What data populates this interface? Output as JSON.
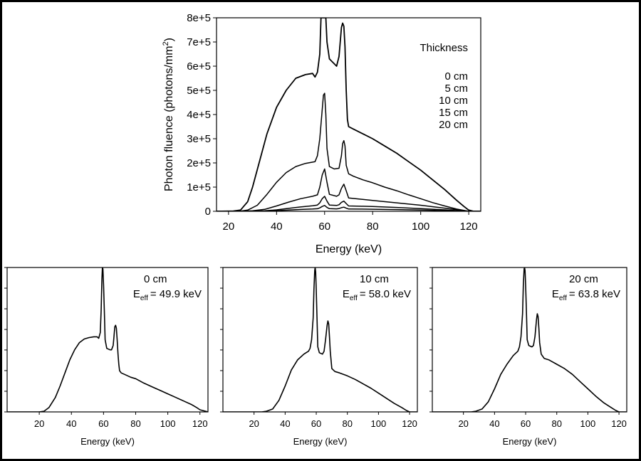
{
  "chart_data": [
    {
      "type": "line",
      "title": "",
      "xlabel": "Energy (keV)",
      "ylabel": "Photon fluence (photons/mm",
      "ylabel_sup": "2",
      "ylabel_end": ")",
      "xlim": [
        15,
        125
      ],
      "ylim": [
        0,
        800000
      ],
      "xticks": [
        20,
        40,
        60,
        80,
        100,
        120
      ],
      "yticks": [
        0,
        100000,
        200000,
        300000,
        400000,
        500000,
        600000,
        700000,
        800000
      ],
      "ytick_labels": [
        "0",
        "1e+5",
        "2e+5",
        "3e+5",
        "4e+5",
        "5e+5",
        "6e+5",
        "7e+5",
        "8e+5"
      ],
      "legend": {
        "title": "Thickness",
        "placement": "top-right",
        "entries": [
          "0 cm",
          "5 cm",
          "10 cm",
          "15 cm",
          "20 cm"
        ]
      },
      "series": [
        {
          "name": "0 cm",
          "x": [
            15,
            22,
            25,
            28,
            30,
            33,
            36,
            40,
            44,
            48,
            52,
            55,
            56,
            57,
            58,
            58.5,
            59,
            59.3,
            59.6,
            60,
            60.5,
            61,
            62,
            63,
            64,
            65,
            66,
            66.5,
            67,
            67.5,
            68,
            68.5,
            69,
            69.5,
            70,
            72,
            76,
            80,
            85,
            90,
            95,
            100,
            105,
            110,
            115,
            118,
            120,
            122,
            125
          ],
          "y": [
            0,
            1000,
            5000,
            40000,
            100000,
            210000,
            320000,
            430000,
            500000,
            550000,
            565000,
            570000,
            555000,
            575000,
            650000,
            800000,
            800000,
            800000,
            800000,
            800000,
            800000,
            700000,
            630000,
            620000,
            610000,
            600000,
            640000,
            700000,
            760000,
            778000,
            765000,
            680000,
            500000,
            380000,
            350000,
            340000,
            320000,
            300000,
            270000,
            240000,
            205000,
            170000,
            130000,
            90000,
            45000,
            20000,
            5000,
            0,
            0
          ]
        },
        {
          "name": "5 cm",
          "x": [
            15,
            22,
            25,
            28,
            32,
            36,
            40,
            44,
            48,
            52,
            56,
            57,
            58,
            59,
            59.5,
            60,
            60.5,
            61,
            62,
            64,
            66,
            67,
            67.5,
            68,
            68.5,
            69,
            70,
            72,
            76,
            80,
            85,
            90,
            95,
            100,
            105,
            110,
            115,
            120,
            122,
            125
          ],
          "y": [
            0,
            500,
            1000,
            5000,
            25000,
            70000,
            120000,
            160000,
            185000,
            198000,
            205000,
            230000,
            300000,
            420000,
            480000,
            488000,
            400000,
            260000,
            185000,
            175000,
            178000,
            230000,
            280000,
            292000,
            270000,
            190000,
            155000,
            145000,
            130000,
            118000,
            100000,
            85000,
            68000,
            52000,
            36000,
            22000,
            9000,
            0,
            0,
            0
          ]
        },
        {
          "name": "10 cm",
          "x": [
            15,
            25,
            30,
            35,
            40,
            45,
            50,
            55,
            57,
            58,
            59,
            60,
            61,
            62,
            65,
            66,
            67,
            68,
            69,
            70,
            75,
            80,
            90,
            100,
            110,
            118,
            120,
            125
          ],
          "y": [
            0,
            0,
            2000,
            8000,
            22000,
            38000,
            52000,
            62000,
            68000,
            100000,
            150000,
            175000,
            120000,
            70000,
            62000,
            68000,
            95000,
            112000,
            85000,
            55000,
            50000,
            45000,
            35000,
            25000,
            13000,
            3000,
            0,
            0
          ]
        },
        {
          "name": "15 cm",
          "x": [
            15,
            28,
            35,
            40,
            45,
            50,
            55,
            57,
            58,
            59,
            60,
            61,
            62,
            65,
            66,
            67,
            68,
            69,
            70,
            75,
            80,
            90,
            100,
            110,
            118,
            120,
            125
          ],
          "y": [
            0,
            0,
            2000,
            6000,
            12000,
            18000,
            23000,
            26000,
            35000,
            52000,
            62000,
            42000,
            26000,
            24000,
            27000,
            37000,
            42000,
            32000,
            22000,
            21000,
            20000,
            16000,
            11000,
            6000,
            1000,
            0,
            0
          ]
        },
        {
          "name": "20 cm",
          "x": [
            15,
            30,
            35,
            40,
            45,
            50,
            55,
            57,
            58,
            59,
            60,
            61,
            62,
            65,
            66,
            67,
            68,
            69,
            70,
            75,
            80,
            90,
            100,
            110,
            118,
            120,
            125
          ],
          "y": [
            0,
            0,
            1000,
            2500,
            5000,
            7500,
            9500,
            10500,
            14000,
            20000,
            24000,
            16000,
            11000,
            10000,
            11500,
            15000,
            17000,
            13000,
            9500,
            9000,
            8500,
            7000,
            5000,
            2500,
            500,
            0,
            0
          ]
        }
      ]
    },
    {
      "type": "line",
      "label": "0 cm",
      "eff_sym": "E",
      "eff_sub": "eff",
      "eff_value": "= 49.9 keV",
      "xlabel": "Energy (keV)",
      "xlim": [
        0,
        125
      ],
      "ylim": [
        0,
        1
      ],
      "xticks": [
        20,
        40,
        60,
        80,
        100,
        120
      ],
      "yticks": [
        0,
        0.143,
        0.286,
        0.429,
        0.571,
        0.714,
        0.857,
        1
      ],
      "series": [
        {
          "name": "0 cm",
          "x": [
            0,
            20,
            23,
            26,
            30,
            33,
            36,
            39,
            42,
            45,
            48,
            51,
            54,
            56,
            57,
            58,
            58.5,
            59,
            59.3,
            59.6,
            60,
            60.5,
            61,
            62,
            64,
            65,
            66,
            66.5,
            67,
            67.5,
            68,
            68.5,
            69,
            69.5,
            70,
            71,
            73,
            77,
            80,
            85,
            90,
            95,
            100,
            105,
            110,
            115,
            118,
            120,
            125
          ],
          "y": [
            0,
            0,
            0.005,
            0.03,
            0.1,
            0.18,
            0.27,
            0.36,
            0.43,
            0.48,
            0.505,
            0.515,
            0.52,
            0.52,
            0.51,
            0.55,
            0.7,
            0.92,
            1,
            0.99,
            0.88,
            0.7,
            0.5,
            0.44,
            0.43,
            0.43,
            0.46,
            0.52,
            0.59,
            0.6,
            0.58,
            0.5,
            0.4,
            0.33,
            0.285,
            0.27,
            0.26,
            0.24,
            0.23,
            0.2,
            0.175,
            0.15,
            0.125,
            0.1,
            0.075,
            0.05,
            0.03,
            0.015,
            0
          ]
        }
      ]
    },
    {
      "type": "line",
      "label": "10 cm",
      "eff_sym": "E",
      "eff_sub": "eff",
      "eff_value": "= 58.0 keV",
      "xlabel": "Energy (keV)",
      "xlim": [
        0,
        125
      ],
      "ylim": [
        0,
        1
      ],
      "xticks": [
        20,
        40,
        60,
        80,
        100,
        120
      ],
      "yticks": [
        0,
        0.143,
        0.286,
        0.429,
        0.571,
        0.714,
        0.857,
        1
      ],
      "series": [
        {
          "name": "10 cm",
          "x": [
            0,
            25,
            28,
            32,
            36,
            40,
            44,
            48,
            52,
            55,
            56,
            57,
            58,
            58.5,
            59,
            59.3,
            59.6,
            60,
            60.5,
            61,
            62,
            64,
            65,
            66,
            67,
            67.5,
            68,
            68.5,
            69,
            70,
            72,
            75,
            80,
            85,
            90,
            95,
            100,
            105,
            110,
            115,
            118,
            120,
            125
          ],
          "y": [
            0,
            0,
            0.005,
            0.02,
            0.08,
            0.18,
            0.29,
            0.36,
            0.4,
            0.42,
            0.44,
            0.5,
            0.65,
            0.85,
            0.98,
            1,
            0.97,
            0.85,
            0.65,
            0.45,
            0.41,
            0.4,
            0.42,
            0.5,
            0.6,
            0.63,
            0.61,
            0.52,
            0.42,
            0.3,
            0.28,
            0.27,
            0.25,
            0.225,
            0.195,
            0.165,
            0.13,
            0.095,
            0.06,
            0.03,
            0.01,
            0,
            0
          ]
        }
      ]
    },
    {
      "type": "line",
      "label": "20 cm",
      "eff_sym": "E",
      "eff_sub": "eff",
      "eff_value": "= 63.8 keV",
      "xlabel": "Energy (keV)",
      "xlim": [
        0,
        125
      ],
      "ylim": [
        0,
        1
      ],
      "xticks": [
        20,
        40,
        60,
        80,
        100,
        120
      ],
      "yticks": [
        0,
        0.143,
        0.286,
        0.429,
        0.571,
        0.714,
        0.857,
        1
      ],
      "series": [
        {
          "name": "20 cm",
          "x": [
            0,
            25,
            28,
            32,
            36,
            40,
            44,
            48,
            52,
            55,
            56,
            57,
            58,
            58.5,
            59,
            59.3,
            59.6,
            60,
            60.5,
            61,
            62,
            64,
            65,
            66,
            67,
            67.5,
            68,
            68.5,
            69,
            70,
            72,
            75,
            80,
            85,
            90,
            95,
            100,
            105,
            110,
            115,
            118,
            120,
            125
          ],
          "y": [
            0,
            0,
            0.005,
            0.02,
            0.07,
            0.16,
            0.26,
            0.33,
            0.39,
            0.42,
            0.45,
            0.52,
            0.68,
            0.88,
            0.99,
            1,
            0.98,
            0.88,
            0.7,
            0.5,
            0.46,
            0.45,
            0.46,
            0.52,
            0.64,
            0.68,
            0.66,
            0.58,
            0.48,
            0.4,
            0.37,
            0.36,
            0.33,
            0.3,
            0.26,
            0.21,
            0.16,
            0.11,
            0.065,
            0.03,
            0.01,
            0,
            0
          ]
        }
      ]
    }
  ]
}
